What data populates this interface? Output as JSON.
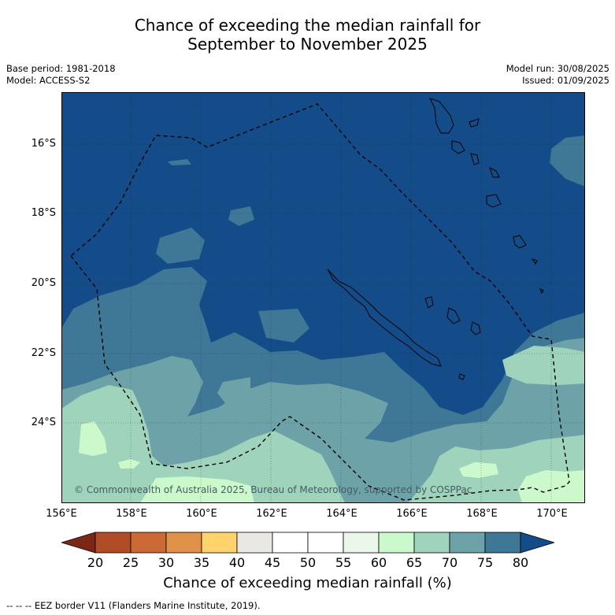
{
  "title": {
    "line1": "Chance of exceeding the median rainfall for",
    "line2": "September to November 2025"
  },
  "meta_left": {
    "line1": "Base period: 1981-2018",
    "line2": "Model: ACCESS-S2"
  },
  "meta_right": {
    "line1": "Model run: 30/08/2025",
    "line2": "Issued: 01/09/2025"
  },
  "map": {
    "lon_range": [
      156,
      171
    ],
    "lat_range": [
      -26.3,
      -14.6
    ],
    "lat_labels": [
      "16°S",
      "18°S",
      "20°S",
      "22°S",
      "24°S"
    ],
    "lon_labels": [
      "156°E",
      "158°E",
      "160°E",
      "162°E",
      "164°E",
      "166°E",
      "168°E",
      "170°E"
    ],
    "copyright": "© Commonwealth of Australia 2025, Bureau of Meteorology, supported by COSPPac",
    "colors": {
      "c75_80": "#134c88",
      "c70_75": "#3f7796",
      "c65_70": "#6ca2a8",
      "c60_65": "#9fd3bb",
      "c55_60": "#ccf9cc"
    }
  },
  "colorbar": {
    "labels": [
      "20",
      "25",
      "30",
      "35",
      "40",
      "45",
      "50",
      "55",
      "60",
      "65",
      "70",
      "75",
      "80"
    ],
    "colors": [
      "#7c2716",
      "#b14d26",
      "#cc6a36",
      "#e0924a",
      "#ffd36b",
      "#e9e8e2",
      "#ffffff",
      "#ffffff",
      "#eaf7ea",
      "#ccf9cc",
      "#9fd3bb",
      "#6ca2a8",
      "#3f7796",
      "#134c88"
    ],
    "title": "Chance of exceeding median rainfall (%)"
  },
  "footer": "--  --  -- EEZ border V11 (Flanders Marine Institute, 2019)."
}
